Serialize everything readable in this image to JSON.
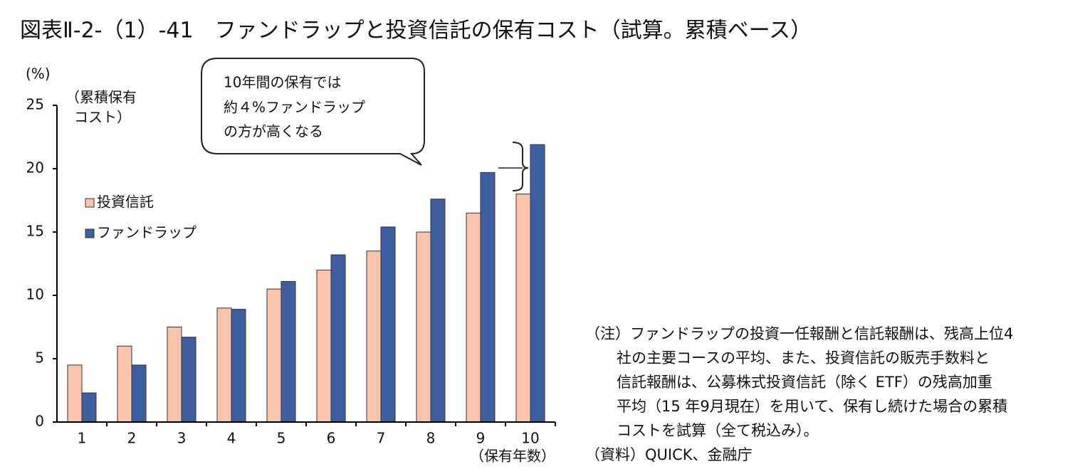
{
  "chart_data": {
    "type": "bar",
    "title": "図表Ⅱ-2-（1）-41　ファンドラップと投資信託の保有コスト（試算。累積ベース）",
    "y_unit": "(%)",
    "y_label": [
      "（累積保有",
      "コスト）"
    ],
    "x_label": "（保有年数）",
    "categories": [
      "1",
      "2",
      "3",
      "4",
      "5",
      "6",
      "7",
      "8",
      "9",
      "10"
    ],
    "series": [
      {
        "name": "投資信託",
        "color": "#f9c4aa",
        "values": [
          4.5,
          6,
          7.5,
          9,
          10.5,
          12,
          13.5,
          15,
          16.5,
          18
        ]
      },
      {
        "name": "ファンドラップ",
        "color": "#3d5f9f",
        "values": [
          2.3,
          4.5,
          6.7,
          8.9,
          11.1,
          13.2,
          15.4,
          17.6,
          19.7,
          21.9
        ]
      }
    ],
    "ylim": [
      0,
      25
    ],
    "yticks": [
      0,
      5,
      10,
      15,
      20,
      25
    ],
    "grid": false,
    "annotation": [
      "10年間の保有では",
      "約４%ファンドラップ",
      "の方が高くなる"
    ],
    "note": [
      "（注）ファンドラップの投資一任報酬と信託報酬は、残高上位4",
      "社の主要コースの平均、また、投資信託の販売手数料と",
      "信託報酬は、公募株式投資信託（除く ETF）の残高加重",
      "平均（15 年9月現在）を用いて、保有し続けた場合の累積",
      "コストを試算（全て税込み）。"
    ],
    "source": "（資料）QUICK、金融庁"
  }
}
